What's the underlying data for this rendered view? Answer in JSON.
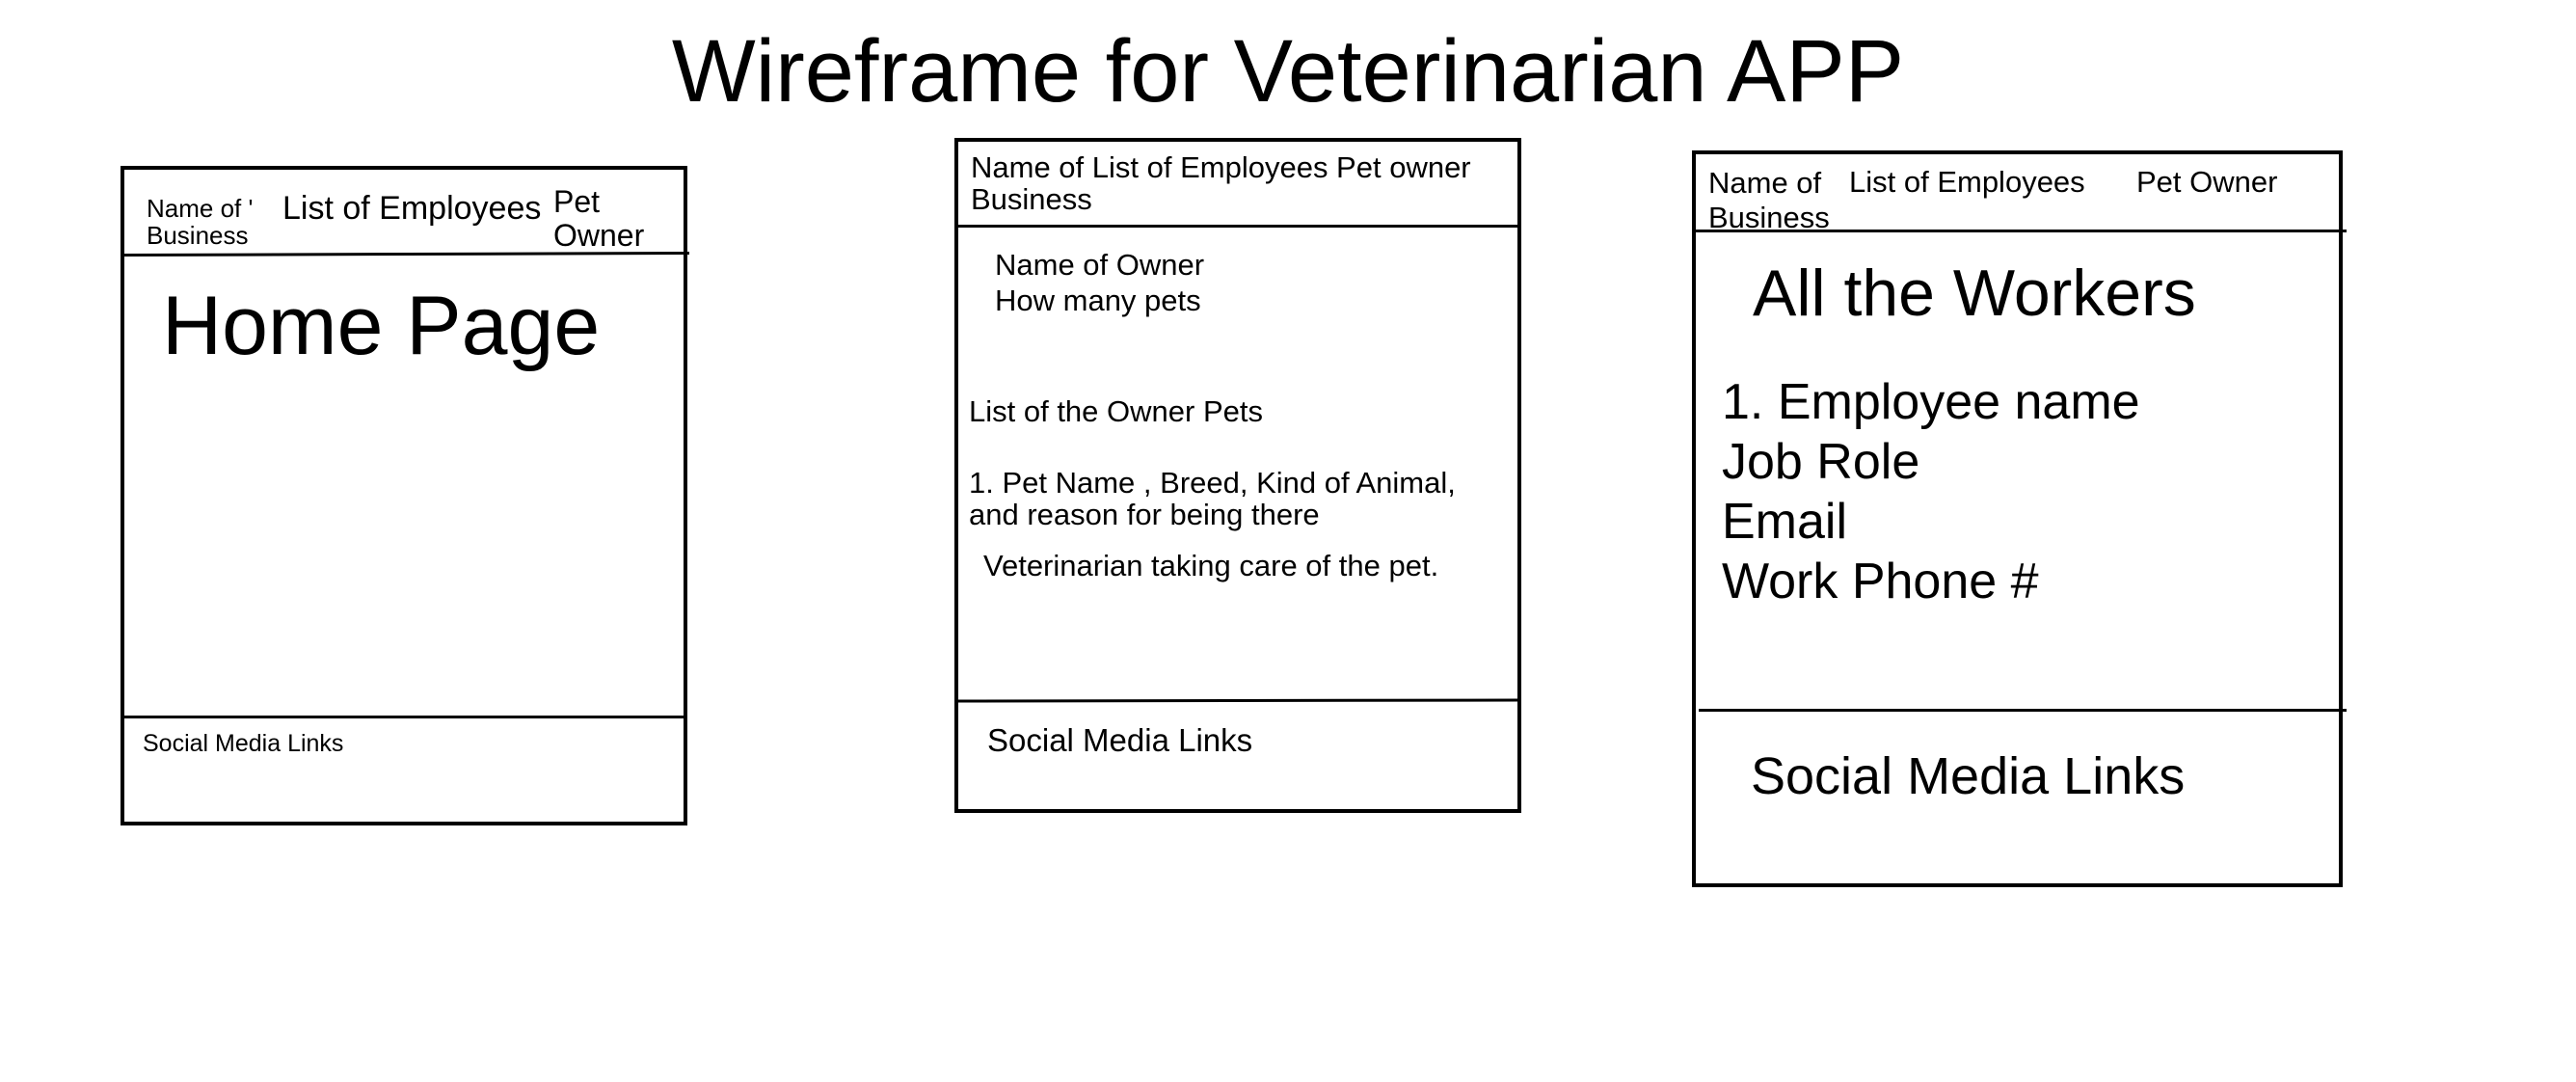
{
  "title": "Wireframe for Veterinarian APP",
  "frame_home": {
    "nav_business": "Name of '\nBusiness",
    "nav_employees": "List of Employees",
    "nav_pet_owner": "Pet\nOwner",
    "page_heading": "Home Page",
    "footer": "Social Media Links"
  },
  "frame_pet_owner": {
    "nav": "Name of List of Employees Pet owner\nBusiness",
    "owner_name": "Name of Owner",
    "pet_count": "How many pets",
    "pets_heading": "List of the Owner Pets",
    "pet_item": "1. Pet Name , Breed, Kind of Animal,\nand reason for being there",
    "vet_line": "Veterinarian taking care of the pet.",
    "footer": "Social Media Links"
  },
  "frame_employees": {
    "nav_business": "Name of\nBusiness",
    "nav_employees": "List of Employees",
    "nav_pet_owner": "Pet Owner",
    "page_heading": "All the Workers",
    "employee_name": "1. Employee name",
    "job_role": "Job Role",
    "email": "Email",
    "phone": "Work Phone #",
    "footer": "Social Media Links"
  }
}
